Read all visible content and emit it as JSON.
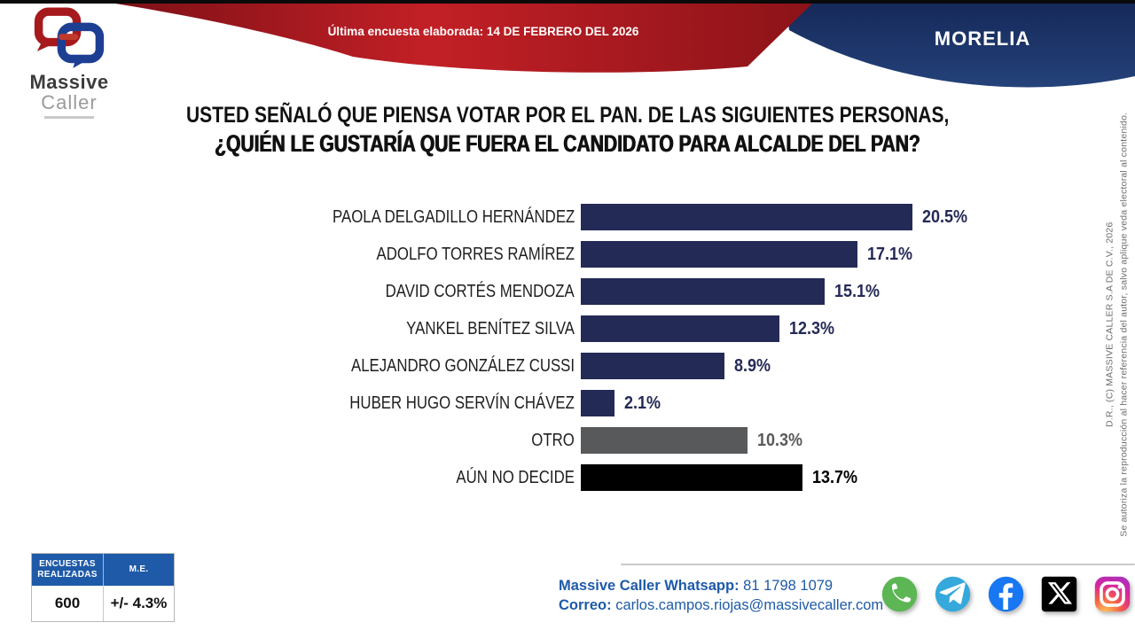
{
  "header": {
    "banner_text": "Última encuesta elaborada: 14 DE FEBRERO DEL 2026",
    "region_label": "MORELIA",
    "logo_line1": "Massive",
    "logo_line2": "Caller",
    "colors": {
      "ribbon_red": "#b51c23",
      "banner_navy": "#1d3765",
      "top_strip": "#0a0a0a"
    }
  },
  "title": {
    "line1": "USTED SEÑALÓ QUE PIENSA VOTAR POR EL PAN. DE LAS SIGUIENTES PERSONAS,",
    "line2": "¿QUIÉN LE GUSTARÍA QUE FUERA EL CANDIDATO PARA ALCALDE DEL PAN?"
  },
  "chart_data": {
    "type": "bar",
    "orientation": "horizontal",
    "unit": "%",
    "categories": [
      "PAOLA DELGADILLO HERNÁNDEZ",
      "ADOLFO TORRES RAMÍREZ",
      "DAVID CORTÉS MENDOZA",
      "YANKEL BENÍTEZ SILVA",
      "ALEJANDRO GONZÁLEZ CUSSI",
      "HUBER HUGO SERVÍN CHÁVEZ",
      "OTRO",
      "AÚN NO DECIDE"
    ],
    "values": [
      20.5,
      17.1,
      15.1,
      12.3,
      8.9,
      2.1,
      10.3,
      13.7
    ],
    "value_labels": [
      "20.5%",
      "17.1%",
      "15.1%",
      "12.3%",
      "8.9%",
      "2.1%",
      "10.3%",
      "13.7%"
    ],
    "colors": [
      "#242a56",
      "#242a56",
      "#242a56",
      "#242a56",
      "#242a56",
      "#242a56",
      "#58595b",
      "#000000"
    ],
    "xlim": [
      0,
      22
    ],
    "grid": false,
    "legend": false
  },
  "stats_table": {
    "headers": [
      "ENCUESTAS REALIZADAS",
      "M.E."
    ],
    "values": [
      "600",
      "+/- 4.3%"
    ],
    "header_bg": "#1e5aa8"
  },
  "contact": {
    "whatsapp_label": "Massive Caller Whatsapp:",
    "whatsapp_number": "81 1798 1079",
    "email_label": "Correo:",
    "email": "carlos.campos.riojas@massivecaller.com"
  },
  "social_platforms": [
    "whatsapp",
    "telegram",
    "facebook",
    "x",
    "instagram"
  ],
  "copyright": {
    "line1": "D.R., (C) MASSIVE CALLER S.A DE C.V., 2026",
    "line2": "Se autoriza la reproducción al hacer referencia del autor, salvo aplique veda electoral al contenido."
  }
}
